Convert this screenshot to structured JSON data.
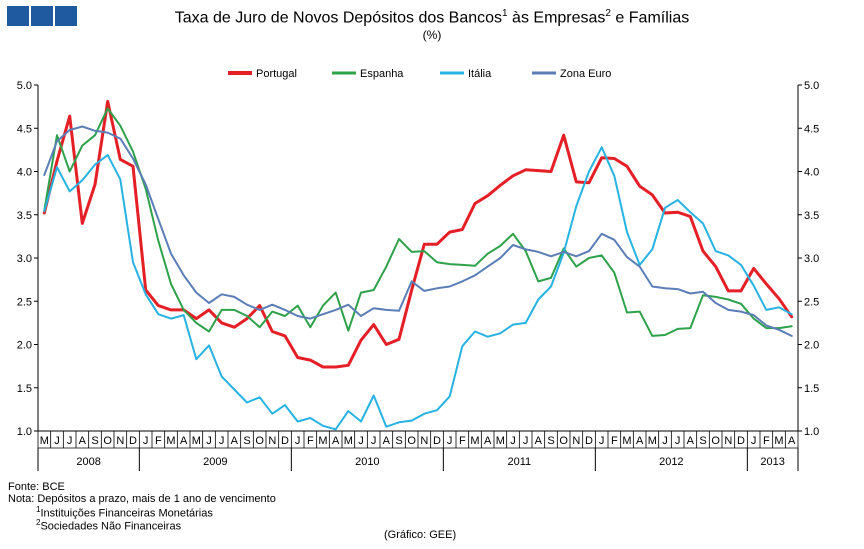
{
  "title": {
    "part1": "Taxa de Juro de Novos Depósitos dos Bancos",
    "sup1": "1",
    "part2": " às Empresas",
    "sup2": "2",
    "part3": " e Famílias"
  },
  "subtitle": "(%)",
  "footer": {
    "source": "Fonte: BCE",
    "note": "Nota: Depósitos a prazo, mais de 1 ano de vencimento",
    "fn1_num": "1",
    "fn1_text": "Instituições Financeiras Monetárias",
    "fn2_num": "2",
    "fn2_text": "Sociedades Não Financeiras",
    "credit": "(Gráfico: GEE)"
  },
  "chart_data": {
    "type": "line",
    "title": "Taxa de Juro de Novos Depósitos dos Bancos às Empresas e Famílias",
    "ylabel": "%",
    "ylim": [
      1.0,
      5.0
    ],
    "yticks": [
      "1.0",
      "1.5",
      "2.0",
      "2.5",
      "3.0",
      "3.5",
      "4.0",
      "4.5",
      "5.0"
    ],
    "month_labels": [
      "M",
      "J",
      "J",
      "A",
      "S",
      "O",
      "N",
      "D",
      "J",
      "F",
      "M",
      "A",
      "M",
      "J",
      "J",
      "A",
      "S",
      "O",
      "N",
      "D",
      "J",
      "F",
      "M",
      "A",
      "M",
      "J",
      "J",
      "A",
      "S",
      "O",
      "N",
      "D",
      "J",
      "F",
      "M",
      "A",
      "M",
      "J",
      "J",
      "A",
      "S",
      "O",
      "N",
      "D",
      "J",
      "F",
      "M",
      "A",
      "M",
      "J",
      "J",
      "A",
      "S",
      "O",
      "N",
      "D",
      "J",
      "F",
      "M",
      "A"
    ],
    "years": [
      {
        "label": "2008",
        "months": 8
      },
      {
        "label": "2009",
        "months": 12
      },
      {
        "label": "2010",
        "months": 12
      },
      {
        "label": "2011",
        "months": 12
      },
      {
        "label": "2012",
        "months": 12
      },
      {
        "label": "2013",
        "months": 4
      }
    ],
    "legend_position": "top",
    "series": [
      {
        "name": "Portugal",
        "color": "#e41f26",
        "width": 3,
        "values": [
          3.52,
          4.12,
          4.64,
          3.4,
          3.85,
          4.81,
          4.14,
          4.06,
          2.63,
          2.45,
          2.4,
          2.4,
          2.3,
          2.4,
          2.25,
          2.2,
          2.3,
          2.45,
          2.15,
          2.1,
          1.85,
          1.82,
          1.74,
          1.74,
          1.76,
          2.05,
          2.23,
          2.0,
          2.06,
          2.63,
          3.16,
          3.16,
          3.3,
          3.33,
          3.63,
          3.72,
          3.84,
          3.95,
          4.02,
          4.01,
          4.0,
          4.42,
          3.88,
          3.87,
          4.16,
          4.15,
          4.06,
          3.83,
          3.73,
          3.52,
          3.53,
          3.48,
          3.08,
          2.9,
          2.62,
          2.62,
          2.88,
          2.7,
          2.53,
          2.32
        ]
      },
      {
        "name": "Espanha",
        "color": "#2ea14b",
        "width": 2,
        "values": [
          3.55,
          4.42,
          4.0,
          4.3,
          4.42,
          4.73,
          4.53,
          4.23,
          3.8,
          3.2,
          2.7,
          2.4,
          2.25,
          2.15,
          2.4,
          2.4,
          2.33,
          2.2,
          2.38,
          2.33,
          2.45,
          2.2,
          2.45,
          2.6,
          2.16,
          2.6,
          2.63,
          2.9,
          3.22,
          3.07,
          3.08,
          2.95,
          2.93,
          2.92,
          2.91,
          3.05,
          3.14,
          3.28,
          3.08,
          2.73,
          2.77,
          3.11,
          2.9,
          3.0,
          3.03,
          2.83,
          2.37,
          2.38,
          2.1,
          2.11,
          2.18,
          2.19,
          2.57,
          2.55,
          2.52,
          2.47,
          2.3,
          2.19,
          2.19,
          2.21
        ]
      },
      {
        "name": "Itália",
        "color": "#27b3e1",
        "width": 2,
        "values": [
          3.54,
          4.05,
          3.77,
          3.9,
          4.08,
          4.19,
          3.91,
          2.95,
          2.58,
          2.35,
          2.3,
          2.34,
          1.83,
          1.99,
          1.63,
          1.48,
          1.33,
          1.39,
          1.2,
          1.3,
          1.11,
          1.15,
          1.06,
          1.02,
          1.23,
          1.11,
          1.41,
          1.05,
          1.1,
          1.12,
          1.2,
          1.24,
          1.4,
          1.98,
          2.15,
          2.09,
          2.13,
          2.23,
          2.25,
          2.52,
          2.67,
          3.06,
          3.6,
          4.0,
          4.28,
          3.95,
          3.3,
          2.92,
          3.1,
          3.58,
          3.67,
          3.53,
          3.4,
          3.08,
          3.03,
          2.92,
          2.68,
          2.4,
          2.43,
          2.35
        ]
      },
      {
        "name": "Zona Euro",
        "color": "#5b7eb6",
        "width": 2,
        "values": [
          3.96,
          4.35,
          4.48,
          4.52,
          4.47,
          4.45,
          4.38,
          4.15,
          3.85,
          3.45,
          3.05,
          2.8,
          2.6,
          2.48,
          2.58,
          2.55,
          2.46,
          2.4,
          2.46,
          2.4,
          2.33,
          2.3,
          2.35,
          2.4,
          2.46,
          2.33,
          2.42,
          2.4,
          2.39,
          2.73,
          2.62,
          2.65,
          2.67,
          2.73,
          2.8,
          2.9,
          3.0,
          3.15,
          3.1,
          3.07,
          3.02,
          3.07,
          3.02,
          3.08,
          3.28,
          3.21,
          3.01,
          2.9,
          2.67,
          2.65,
          2.64,
          2.59,
          2.61,
          2.48,
          2.4,
          2.38,
          2.34,
          2.22,
          2.17,
          2.1
        ]
      }
    ]
  }
}
